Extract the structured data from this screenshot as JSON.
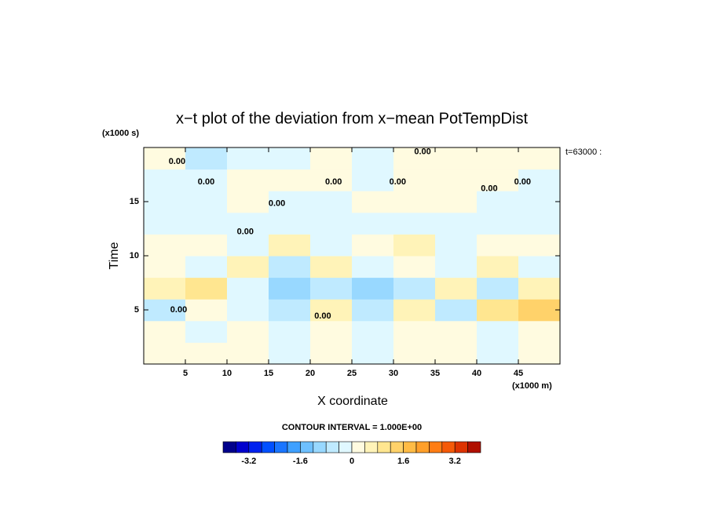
{
  "chart_data": {
    "type": "contour",
    "title": "x−t plot of the deviation from x−mean PotTempDist",
    "x_label": "X coordinate",
    "x_unit": "(x1000 m)",
    "y_label": "Time",
    "y_unit": "(x1000 s)",
    "time_note": "t=63000 :",
    "contour_interval": "CONTOUR INTERVAL = 1.000E+00",
    "xlim": [
      0,
      50
    ],
    "ylim": [
      0,
      20
    ],
    "xticks": [
      5,
      10,
      15,
      20,
      25,
      30,
      35,
      40,
      45
    ],
    "yticks": [
      5,
      10,
      15
    ],
    "x": [
      2.5,
      7.5,
      12.5,
      17.5,
      22.5,
      27.5,
      32.5,
      37.5,
      42.5,
      47.5
    ],
    "y": [
      1,
      3,
      5,
      7,
      9,
      11,
      13,
      15,
      17,
      19
    ],
    "z": [
      [
        0.2,
        0.1,
        0.2,
        -0.2,
        0.1,
        -0.2,
        0.2,
        0.2,
        -0.2,
        0.1
      ],
      [
        0.2,
        -0.3,
        0.3,
        -0.4,
        0.2,
        -0.4,
        0.3,
        0.2,
        -0.4,
        0.2
      ],
      [
        -0.6,
        0.3,
        -0.4,
        -0.8,
        0.6,
        -0.5,
        0.4,
        -0.6,
        0.8,
        1.2
      ],
      [
        0.6,
        1.0,
        -0.4,
        -1.2,
        -0.6,
        -1.0,
        -0.8,
        0.4,
        -0.6,
        0.4
      ],
      [
        0.3,
        -0.4,
        0.4,
        -0.6,
        0.5,
        -0.4,
        0.3,
        -0.3,
        0.4,
        -0.2
      ],
      [
        0.2,
        0.3,
        -0.3,
        0.4,
        -0.2,
        0.3,
        0.4,
        -0.2,
        0.3,
        0.2
      ],
      [
        -0.3,
        -0.3,
        -0.2,
        -0.4,
        -0.3,
        -0.2,
        -0.3,
        -0.2,
        -0.3,
        -0.3
      ],
      [
        -0.4,
        -0.4,
        0.2,
        -0.4,
        -0.3,
        0.3,
        0.3,
        0.2,
        -0.3,
        -0.4
      ],
      [
        -0.2,
        -0.2,
        0.3,
        0.3,
        0.2,
        -0.3,
        0.2,
        0.3,
        0.3,
        -0.2
      ],
      [
        0.3,
        -0.5,
        -0.3,
        -0.2,
        0.3,
        -0.4,
        0.2,
        0.2,
        0.3,
        0.3
      ]
    ],
    "contour_labels": [
      {
        "text": "0.00",
        "x": 4.2,
        "y": 5.0
      },
      {
        "text": "0.00",
        "x": 4.0,
        "y": 18.7
      },
      {
        "text": "0.00",
        "x": 7.5,
        "y": 16.8
      },
      {
        "text": "0.00",
        "x": 16.0,
        "y": 14.8
      },
      {
        "text": "0.00",
        "x": 12.2,
        "y": 12.2
      },
      {
        "text": "0.00",
        "x": 21.5,
        "y": 4.4
      },
      {
        "text": "0.00",
        "x": 22.8,
        "y": 16.8
      },
      {
        "text": "0.00",
        "x": 30.5,
        "y": 16.8
      },
      {
        "text": "0.00",
        "x": 33.5,
        "y": 19.6
      },
      {
        "text": "0.00",
        "x": 41.5,
        "y": 16.2
      },
      {
        "text": "0.00",
        "x": 45.5,
        "y": 16.8
      }
    ],
    "colorbar": {
      "levels": [
        -4,
        -3.6,
        -3.2,
        -2.8,
        -2.4,
        -2,
        -1.6,
        -1.2,
        -0.8,
        -0.4,
        0,
        0.4,
        0.8,
        1.2,
        1.6,
        2,
        2.4,
        2.8,
        3.2,
        3.6,
        4
      ],
      "colors": [
        "#00008b",
        "#0000cd",
        "#0022ee",
        "#0050ff",
        "#1a75ff",
        "#3fa0ff",
        "#6ec0ff",
        "#98d8ff",
        "#bfeaff",
        "#e0f8ff",
        "#fffbe0",
        "#fff3b8",
        "#ffe690",
        "#ffd26a",
        "#ffbb45",
        "#ff9f2a",
        "#ff7d14",
        "#f55a08",
        "#dd3300",
        "#b01000"
      ],
      "ticks": [
        -3.2,
        -1.6,
        0,
        1.6,
        3.2
      ]
    }
  }
}
